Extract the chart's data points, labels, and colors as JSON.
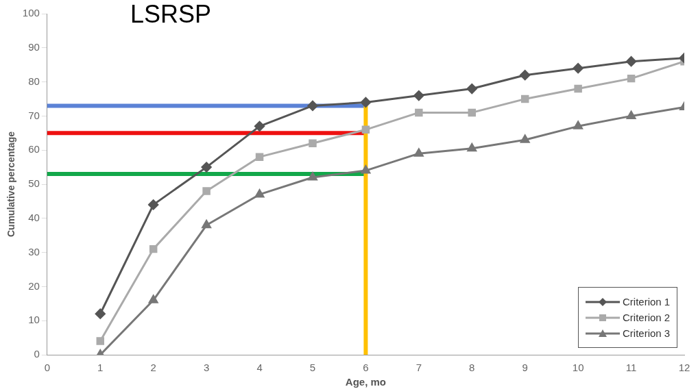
{
  "chart_data": {
    "type": "line",
    "title": "LSRSP",
    "xlabel": "Age, mo",
    "ylabel": "Cumulative percentage",
    "x": [
      1,
      2,
      3,
      4,
      5,
      6,
      7,
      8,
      9,
      10,
      11,
      12
    ],
    "series": [
      {
        "name": "Criterion 1",
        "color": "#555555",
        "marker": "diamond",
        "values": [
          12,
          44,
          55,
          67,
          73,
          74,
          76,
          78,
          82,
          84,
          86,
          87
        ]
      },
      {
        "name": "Criterion 2",
        "color": "#aaaaaa",
        "marker": "square",
        "values": [
          4,
          31,
          48,
          58,
          62,
          66,
          71,
          71,
          75,
          78,
          81,
          86
        ]
      },
      {
        "name": "Criterion 3",
        "color": "#777777",
        "marker": "triangle",
        "values": [
          0,
          16,
          38,
          47,
          52,
          54,
          59,
          60.5,
          63,
          67,
          70,
          72.6
        ]
      }
    ],
    "xlim": [
      0,
      12
    ],
    "xticks": [
      0,
      1,
      2,
      3,
      4,
      5,
      6,
      7,
      8,
      9,
      10,
      11,
      12
    ],
    "ylim": [
      0,
      100
    ],
    "yticks": [
      0,
      10,
      20,
      30,
      40,
      50,
      60,
      70,
      80,
      90,
      100
    ],
    "ref_lines": [
      {
        "axis": "y",
        "value": 73,
        "color": "#5b82d6"
      },
      {
        "axis": "y",
        "value": 65,
        "color": "#ee1111"
      },
      {
        "axis": "y",
        "value": 53,
        "color": "#12a84a"
      },
      {
        "axis": "x",
        "value": 6,
        "color": "#ffc000"
      }
    ],
    "grid": false,
    "legend": "bottom right",
    "line_style": "solid"
  }
}
